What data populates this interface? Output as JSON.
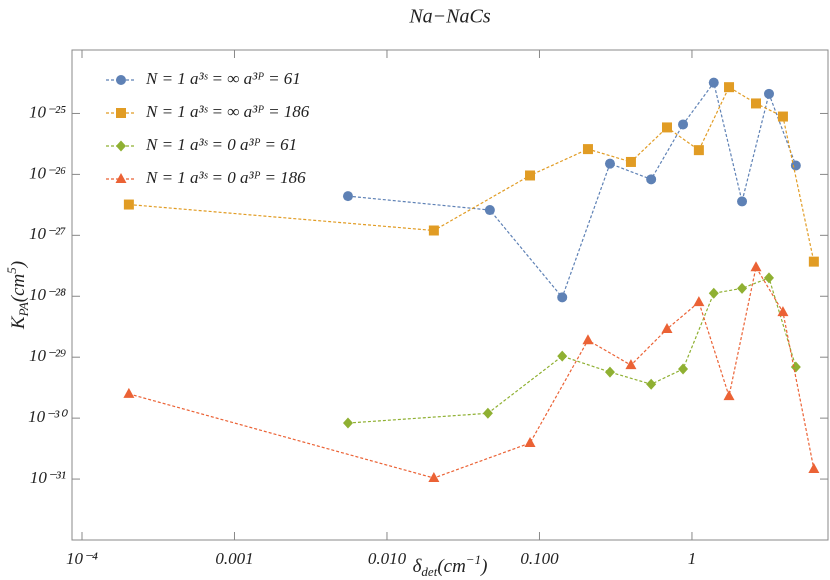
{
  "chart_data": {
    "type": "line",
    "title": "Na−NaCs",
    "xlabel": {
      "main": "δ",
      "sub": "det",
      "rest": "(cm",
      "sup": "−1",
      "end": ")"
    },
    "ylabel": {
      "main": "K",
      "sub": "PA",
      "rest": "(cm",
      "sup": "5",
      "end": ")"
    },
    "xscale": "log",
    "yscale": "log",
    "legend": "top-left",
    "xlim": [
      8.6e-05,
      7.8
    ],
    "ylim": [
      1e-32,
      1.1e-24
    ],
    "xticks": [
      {
        "value": 0.0001,
        "label": "10⁻⁴"
      },
      0.001,
      {
        "value": 0.01,
        "label": "0.010"
      },
      {
        "value": 0.1,
        "label": "0.100"
      },
      1
    ],
    "yticks": [
      {
        "value": 1e-31,
        "label": "10⁻³¹"
      },
      {
        "value": 1e-30,
        "label": "10⁻³⁰"
      },
      {
        "value": 1e-29,
        "label": "10⁻²⁹"
      },
      {
        "value": 1e-28,
        "label": "10⁻²⁸"
      },
      {
        "value": 1e-27,
        "label": "10⁻²⁷"
      },
      {
        "value": 1e-26,
        "label": "10⁻²⁶"
      },
      {
        "value": 1e-25,
        "label": "10⁻²⁵"
      }
    ],
    "series": [
      {
        "name": "N = 1 a³ˢ = ∞ a³ᴾ = 61",
        "color": "#5e81b5",
        "marker": "circle",
        "x": [
          0.00555,
          0.0473,
          0.141,
          0.29,
          0.54,
          0.874,
          1.39,
          2.13,
          3.2,
          4.8
        ],
        "values": [
          4.4e-27,
          2.6e-27,
          9.6e-29,
          1.5e-26,
          8.3e-27,
          6.6e-26,
          3.2e-25,
          3.6e-27,
          2.1e-25,
          1.4e-26
        ]
      },
      {
        "name": "N = 1 a³ˢ = ∞ a³ᴾ = 186",
        "color": "#e19c24",
        "marker": "square",
        "x": [
          0.000203,
          0.0203,
          0.0867,
          0.208,
          0.398,
          0.686,
          1.11,
          1.75,
          2.63,
          3.95,
          6.3
        ],
        "values": [
          3.2e-27,
          1.2e-27,
          9.6e-27,
          2.6e-26,
          1.6e-26,
          5.9e-26,
          2.5e-26,
          2.7e-25,
          1.46e-25,
          8.9e-26,
          3.7e-28
        ]
      },
      {
        "name": "N = 1 a³ˢ = 0 a³ᴾ = 61",
        "color": "#8fb032",
        "marker": "diamond",
        "x": [
          0.00555,
          0.0459,
          0.141,
          0.29,
          0.54,
          0.874,
          1.39,
          2.13,
          3.2,
          4.8
        ],
        "values": [
          8.3e-31,
          1.2e-30,
          1.04e-29,
          5.7e-30,
          3.6e-30,
          6.4e-30,
          1.12e-28,
          1.35e-28,
          2e-28,
          6.9e-30
        ]
      },
      {
        "name": "N = 1 a³ˢ = 0 a³ᴾ = 186",
        "color": "#eb6235",
        "marker": "triangle",
        "x": [
          0.000203,
          0.0203,
          0.0867,
          0.208,
          0.398,
          0.686,
          1.11,
          1.75,
          2.63,
          3.95,
          6.3
        ],
        "values": [
          2.5e-30,
          1.04e-31,
          3.9e-31,
          1.9e-29,
          7.4e-30,
          2.9e-29,
          8e-29,
          2.3e-30,
          3e-28,
          5.5e-29,
          1.46e-31
        ]
      }
    ]
  }
}
